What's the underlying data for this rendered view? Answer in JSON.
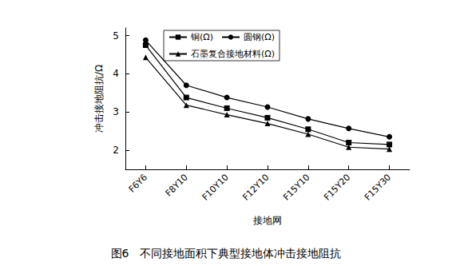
{
  "chart_data": {
    "type": "line",
    "title": "图6　不同接地面积下典型接地体冲击接地阻抗",
    "x_label": "接地网",
    "y_label": "冲击接地阻抗/Ω",
    "categories": [
      "F6Y6",
      "F8Y10",
      "F10Y10",
      "F12Y10",
      "F15Y10",
      "F15Y20",
      "F15Y30"
    ],
    "series": [
      {
        "name": "铜(Ω)",
        "color": "#000000",
        "marker": "square",
        "line_style": "solid",
        "values": [
          4.75,
          3.38,
          3.1,
          2.85,
          2.55,
          2.2,
          2.15
        ]
      },
      {
        "name": "圆钢(Ω)",
        "color": "#000000",
        "marker": "circle",
        "line_style": "solid",
        "values": [
          4.88,
          3.7,
          3.38,
          3.13,
          2.82,
          2.57,
          2.35
        ]
      },
      {
        "name": "石墨复合接地材料(Ω)",
        "color": "#000000",
        "marker": "triangle",
        "line_style": "solid",
        "values": [
          4.43,
          3.18,
          2.93,
          2.7,
          2.42,
          2.08,
          2.03
        ]
      }
    ],
    "ylim": [
      1.5,
      5.2
    ],
    "yticks": [
      2,
      3,
      4,
      5
    ],
    "grid": false,
    "legend": "upper left"
  }
}
